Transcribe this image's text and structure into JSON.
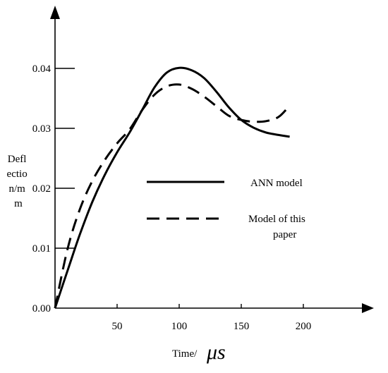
{
  "chart_data": {
    "type": "line",
    "title": "",
    "xlabel": "Time/",
    "xlabel_unit": "μs",
    "ylabel_lines": [
      "Defl",
      "ectio",
      "n/m",
      "m"
    ],
    "xlim": [
      0,
      250
    ],
    "ylim": [
      0,
      0.047
    ],
    "x_ticks": [
      {
        "value": 50,
        "label": "50"
      },
      {
        "value": 100,
        "label": "100"
      },
      {
        "value": 150,
        "label": "150"
      },
      {
        "value": 200,
        "label": "200"
      }
    ],
    "y_ticks": [
      {
        "value": 0,
        "label": "0.00"
      },
      {
        "value": 0.01,
        "label": "0.01"
      },
      {
        "value": 0.02,
        "label": "0.02"
      },
      {
        "value": 0.03,
        "label": "0.03"
      },
      {
        "value": 0.04,
        "label": "0.04"
      }
    ],
    "grid": false,
    "legend_position": "center-right",
    "series": [
      {
        "name": "ANN model",
        "style": "solid",
        "x": [
          0,
          10,
          20,
          30,
          40,
          50,
          60,
          70,
          80,
          90,
          100,
          110,
          120,
          130,
          140,
          150,
          160,
          170,
          180,
          189
        ],
        "y": [
          0,
          0.0062,
          0.0123,
          0.0177,
          0.0222,
          0.026,
          0.0293,
          0.033,
          0.0368,
          0.0393,
          0.0401,
          0.0397,
          0.0384,
          0.0361,
          0.0335,
          0.0314,
          0.0301,
          0.0293,
          0.0289,
          0.0286
        ]
      },
      {
        "name": "Model of this paper",
        "style": "dashed",
        "x": [
          0,
          10,
          20,
          30,
          40,
          50,
          60,
          70,
          80,
          90,
          100,
          110,
          120,
          130,
          140,
          150,
          160,
          170,
          180,
          189
        ],
        "y": [
          0,
          0.0098,
          0.0165,
          0.0212,
          0.0247,
          0.0275,
          0.0298,
          0.033,
          0.0356,
          0.037,
          0.0373,
          0.0366,
          0.0353,
          0.0337,
          0.0321,
          0.0314,
          0.0311,
          0.0312,
          0.0319,
          0.0338
        ]
      }
    ]
  }
}
